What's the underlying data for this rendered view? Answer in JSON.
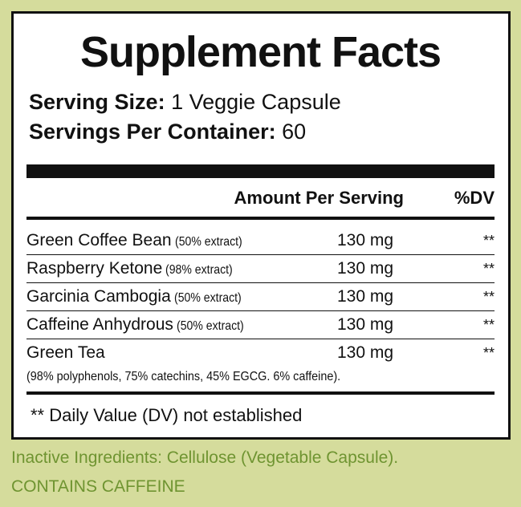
{
  "header": {
    "title": "Supplement Facts"
  },
  "serving": {
    "size_label": "Serving Size:",
    "size_value": "1 Veggie Capsule",
    "per_container_label": "Servings Per Container:",
    "per_container_value": "60"
  },
  "table": {
    "columns": [
      "Amount Per Serving",
      "%DV"
    ],
    "rows": [
      {
        "name": "Green Coffee Bean",
        "extract": "(50% extract)",
        "amount": "130 mg",
        "dv": "**"
      },
      {
        "name": "Raspberry Ketone",
        "extract": "(98% extract)",
        "amount": "130 mg",
        "dv": "**"
      },
      {
        "name": "Garcinia Cambogia",
        "extract": "(50% extract)",
        "amount": "130 mg",
        "dv": "**"
      },
      {
        "name": "Caffeine Anhydrous",
        "extract": "(50% extract)",
        "amount": "130 mg",
        "dv": "**"
      },
      {
        "name": "Green Tea",
        "extract": "",
        "amount": "130 mg",
        "dv": "**"
      }
    ],
    "note": "(98% polyphenols, 75% catechins, 45% EGCG. 6% caffeine).",
    "footnote": "** Daily Value (DV) not established"
  },
  "footer": {
    "inactive": "Inactive Ingredients: Cellulose (Vegetable Capsule).",
    "warning": "CONTAINS CAFFEINE"
  }
}
